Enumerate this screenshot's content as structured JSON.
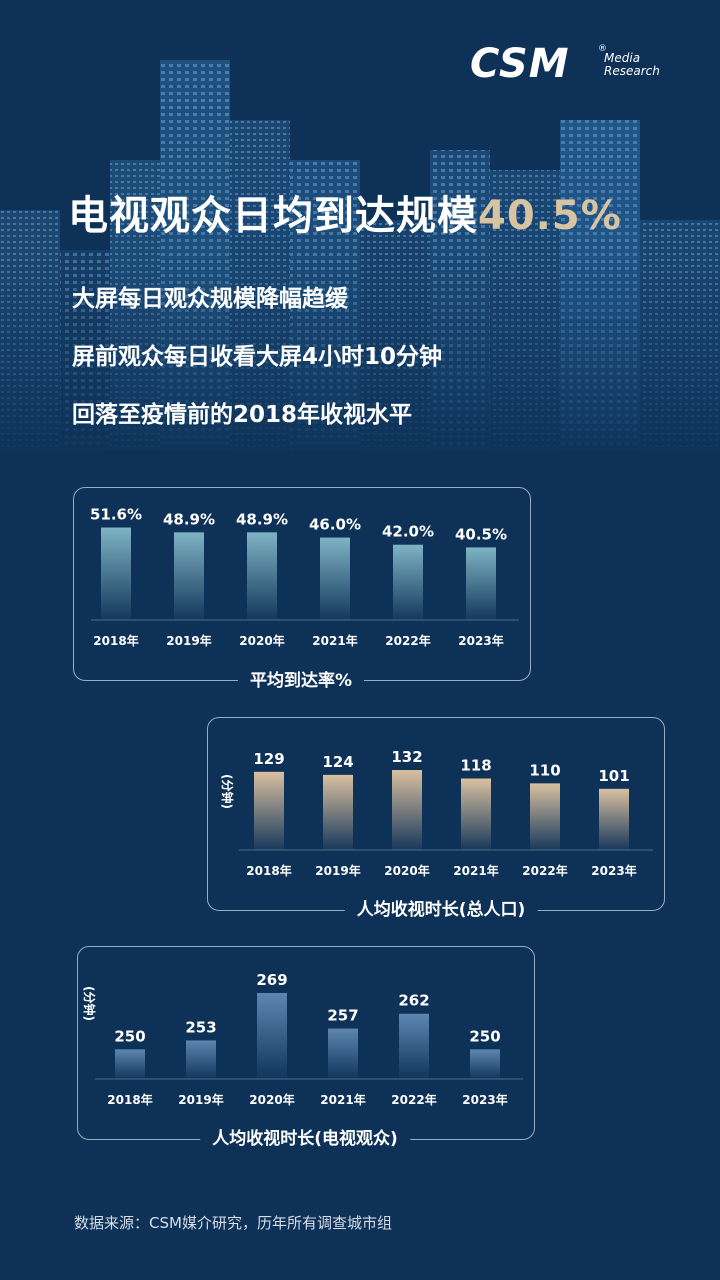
{
  "logo": {
    "main": "CSM",
    "reg": "®",
    "sub1": "Media",
    "sub2": "Research"
  },
  "headline": {
    "text": "电视观众日均到达规模",
    "highlight": "40.5%"
  },
  "subheads": [
    "大屏每日观众规模降幅趋缓",
    "屏前观众每日收看大屏4小时10分钟",
    "回落至疫情前的2018年收视水平"
  ],
  "colors": {
    "background": "#0d3157",
    "highlight": "#d9c4a1",
    "bar_teal": "#7fb3c4",
    "bar_tan": "#d9c0a0",
    "bar_blue": "#5d86b0"
  },
  "source": "数据来源：CSM媒介研究，历年所有调查城市组",
  "chart_data": [
    {
      "type": "bar",
      "title": "平均到达率%",
      "categories": [
        "2018年",
        "2019年",
        "2020年",
        "2021年",
        "2022年",
        "2023年"
      ],
      "values": [
        51.6,
        48.9,
        48.9,
        46.0,
        42.0,
        40.5
      ],
      "value_labels": [
        "51.6%",
        "48.9%",
        "48.9%",
        "46.0%",
        "42.0%",
        "40.5%"
      ],
      "ylabel": "",
      "ylim": [
        0,
        53
      ]
    },
    {
      "type": "bar",
      "title": "人均收视时长(总人口)",
      "categories": [
        "2018年",
        "2019年",
        "2020年",
        "2021年",
        "2022年",
        "2023年"
      ],
      "values": [
        129,
        124,
        132,
        118,
        110,
        101
      ],
      "value_labels": [
        "129",
        "124",
        "132",
        "118",
        "110",
        "101"
      ],
      "ylabel": "(分钟)",
      "ylim": [
        0,
        137
      ]
    },
    {
      "type": "bar",
      "title": "人均收视时长(电视观众)",
      "categories": [
        "2018年",
        "2019年",
        "2020年",
        "2021年",
        "2022年",
        "2023年"
      ],
      "values": [
        250,
        253,
        269,
        257,
        262,
        250
      ],
      "value_labels": [
        "250",
        "253",
        "269",
        "257",
        "262",
        "250"
      ],
      "ylabel": "(分钟)",
      "ylim": [
        240,
        270
      ]
    }
  ]
}
